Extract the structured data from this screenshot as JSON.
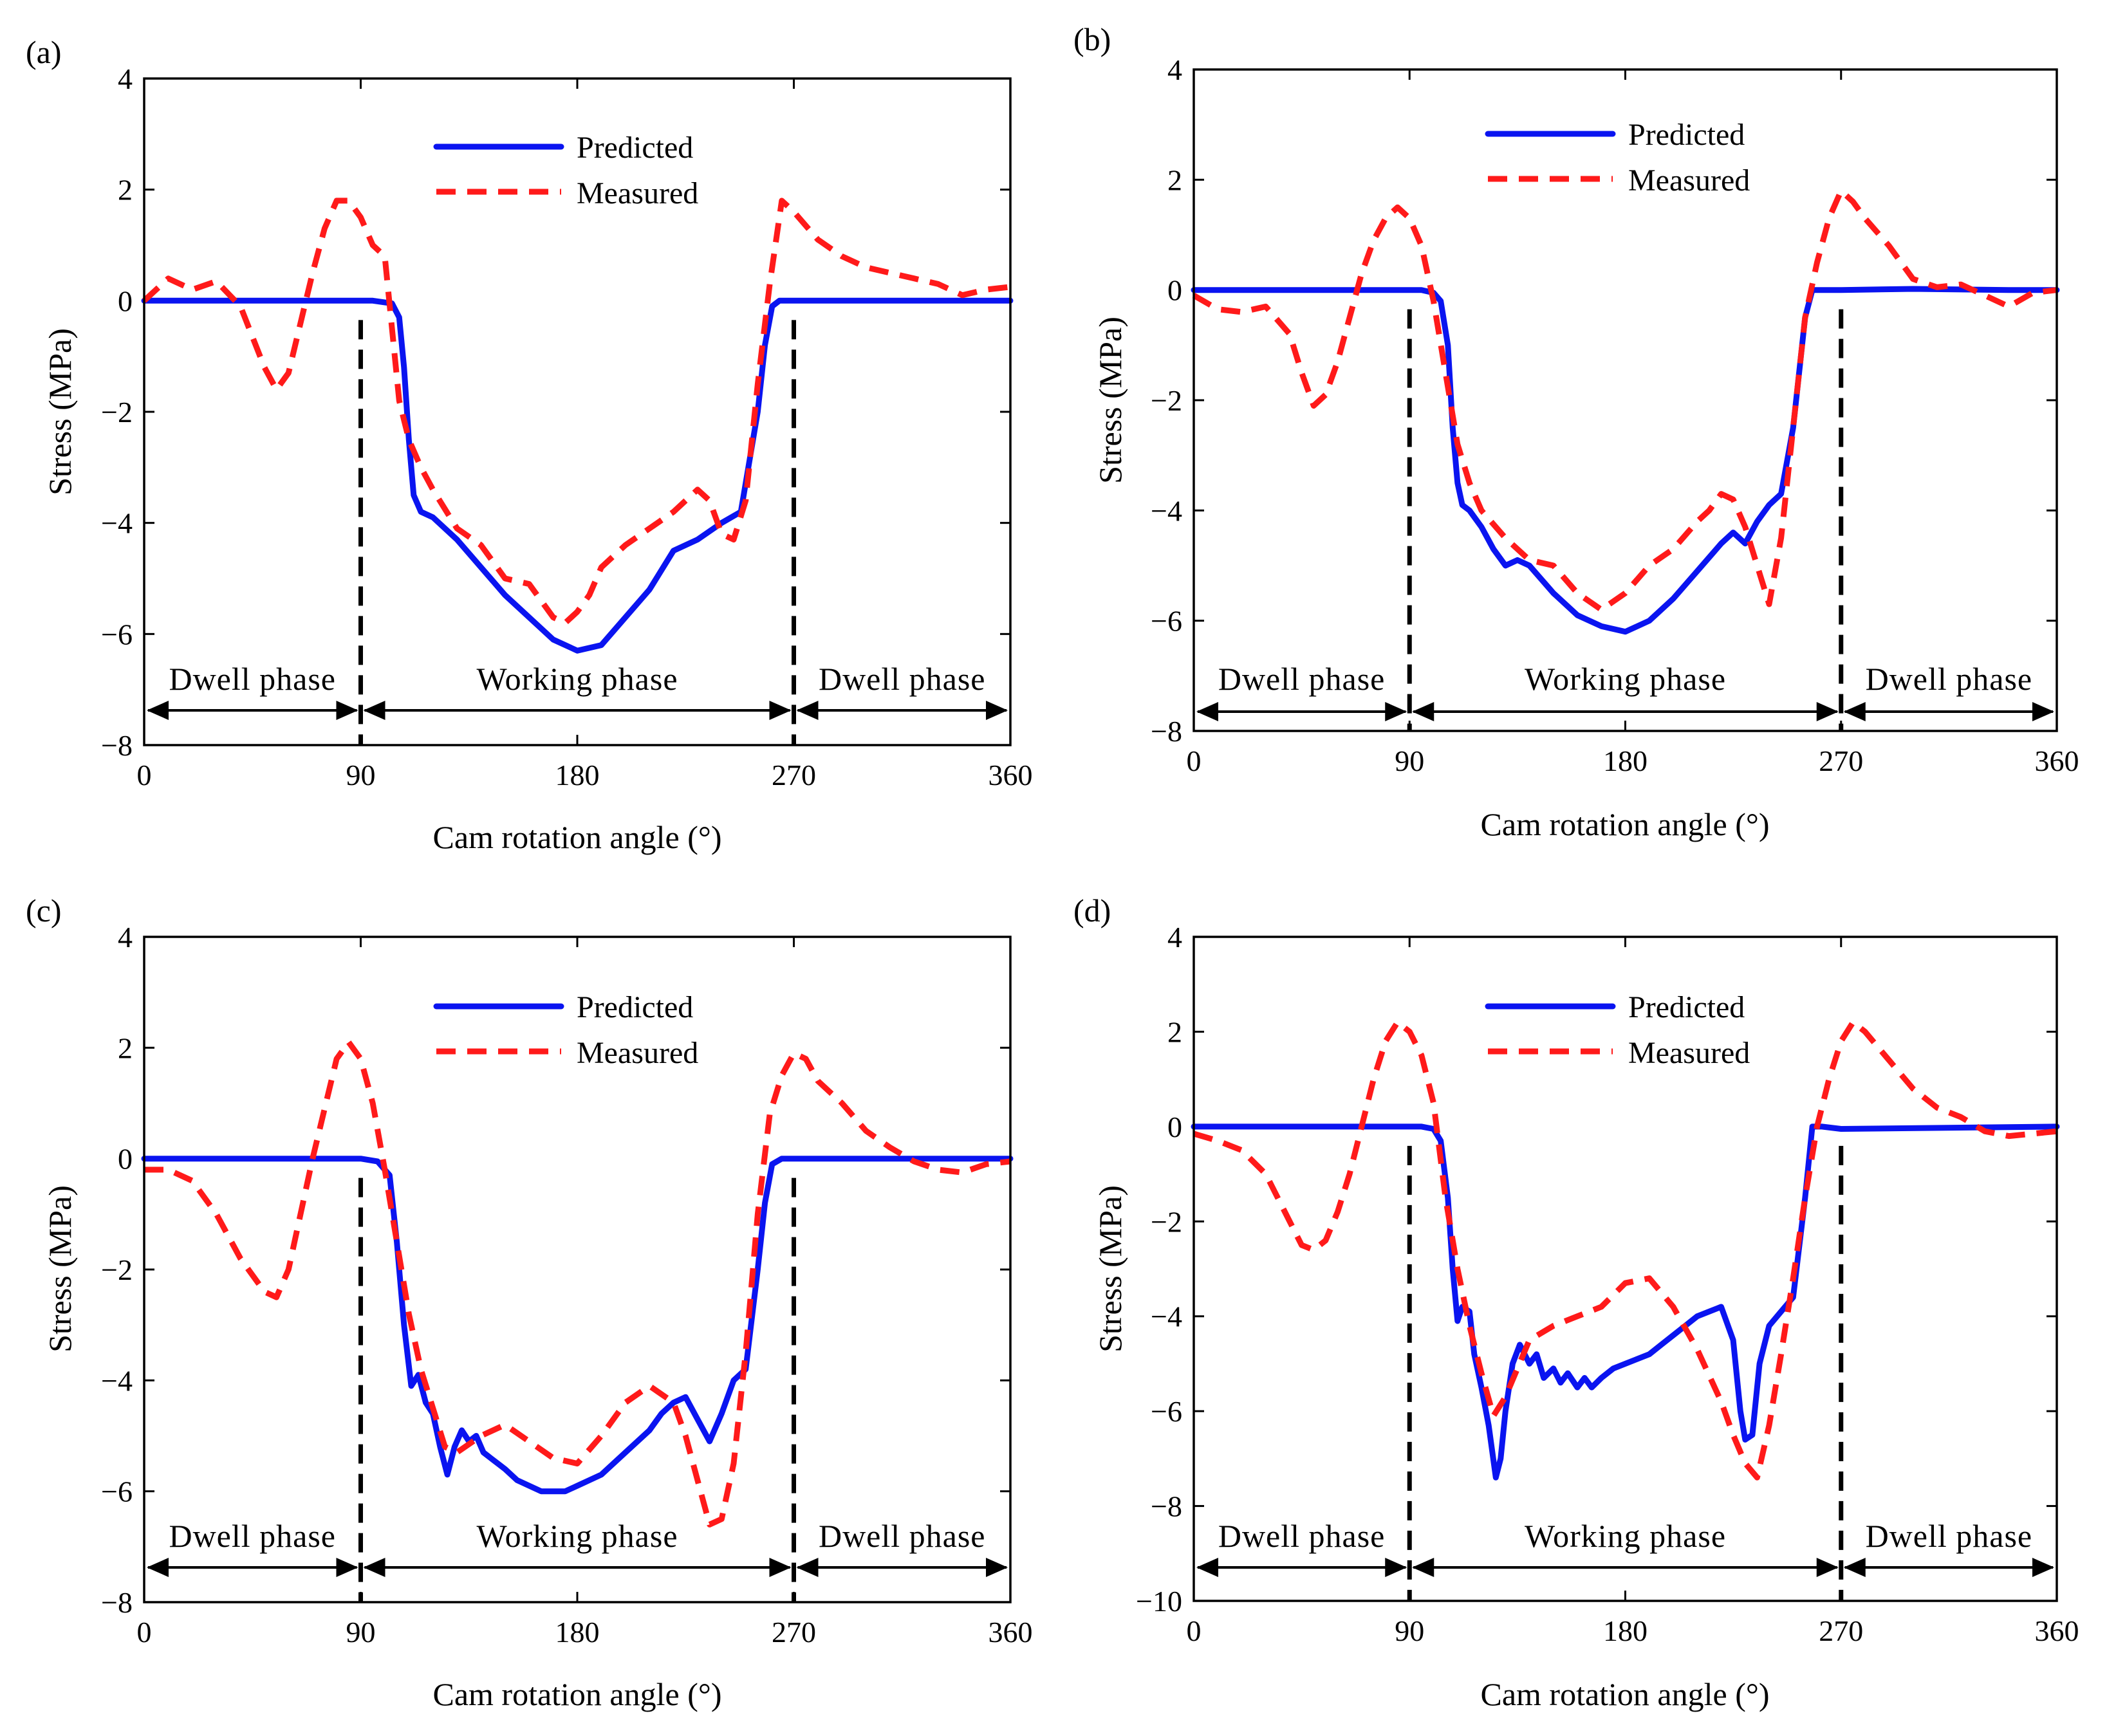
{
  "colors": {
    "predicted": "#0a14f0",
    "measured": "#ff1a1a"
  },
  "chart_data": [
    {
      "panel": "(a)",
      "type": "line",
      "xlabel": "Cam rotation angle (°)",
      "ylabel": "Stress (MPa)",
      "xlim": [
        0,
        360
      ],
      "ylim": [
        -8,
        4
      ],
      "xticks": [
        "0",
        "90",
        "180",
        "270",
        "360"
      ],
      "yticks": [
        "−8",
        "−6",
        "−4",
        "−2",
        "0",
        "2",
        "4"
      ],
      "yvals": [
        -8,
        -6,
        -4,
        -2,
        0,
        2,
        4
      ],
      "legend": [
        "Predicted",
        "Measured"
      ],
      "phases": [
        "Dwell phase",
        "Working phase",
        "Dwell phase"
      ],
      "boundaries": [
        90,
        270
      ],
      "series": [
        {
          "name": "Predicted",
          "x": [
            0,
            85,
            95,
            103,
            106,
            108,
            110,
            112,
            115,
            120,
            130,
            150,
            170,
            180,
            190,
            210,
            220,
            230,
            240,
            248,
            255,
            258,
            261,
            264,
            270,
            360
          ],
          "y": [
            0,
            0,
            0,
            -0.05,
            -0.3,
            -1.2,
            -2.5,
            -3.5,
            -3.8,
            -3.9,
            -4.3,
            -5.3,
            -6.1,
            -6.3,
            -6.2,
            -5.2,
            -4.5,
            -4.3,
            -4.0,
            -3.8,
            -2.0,
            -0.8,
            -0.1,
            0,
            0,
            0
          ]
        },
        {
          "name": "Measured",
          "x": [
            0,
            10,
            20,
            30,
            40,
            50,
            55,
            60,
            65,
            70,
            75,
            80,
            85,
            90,
            95,
            100,
            103,
            106,
            110,
            115,
            120,
            130,
            140,
            150,
            160,
            170,
            175,
            180,
            185,
            190,
            200,
            210,
            220,
            225,
            230,
            235,
            240,
            245,
            250,
            255,
            260,
            265,
            270,
            280,
            290,
            300,
            310,
            320,
            330,
            340,
            350,
            360
          ],
          "y": [
            0,
            0.4,
            0.2,
            0.35,
            -0.1,
            -1.2,
            -1.6,
            -1.3,
            -0.4,
            0.5,
            1.3,
            1.8,
            1.8,
            1.5,
            1.0,
            0.8,
            -0.5,
            -1.8,
            -2.5,
            -3.0,
            -3.4,
            -4.1,
            -4.4,
            -5.0,
            -5.1,
            -5.7,
            -5.8,
            -5.6,
            -5.3,
            -4.8,
            -4.4,
            -4.1,
            -3.8,
            -3.6,
            -3.4,
            -3.6,
            -4.2,
            -4.3,
            -3.6,
            -1.5,
            0.3,
            1.8,
            1.6,
            1.1,
            0.8,
            0.6,
            0.5,
            0.4,
            0.3,
            0.1,
            0.2,
            0.25
          ]
        }
      ]
    },
    {
      "panel": "(b)",
      "type": "line",
      "xlabel": "Cam rotation angle (°)",
      "ylabel": "Stress (MPa)",
      "xlim": [
        0,
        360
      ],
      "ylim": [
        -8,
        4
      ],
      "xticks": [
        "0",
        "90",
        "180",
        "270",
        "360"
      ],
      "yticks": [
        "−8",
        "−6",
        "−4",
        "−2",
        "0",
        "2",
        "4"
      ],
      "yvals": [
        -8,
        -6,
        -4,
        -2,
        0,
        2,
        4
      ],
      "legend": [
        "Predicted",
        "Measured"
      ],
      "phases": [
        "Dwell phase",
        "Working phase",
        "Dwell phase"
      ],
      "boundaries": [
        90,
        270
      ],
      "series": [
        {
          "name": "Predicted",
          "x": [
            0,
            95,
            100,
            103,
            106,
            108,
            110,
            112,
            115,
            120,
            125,
            130,
            135,
            140,
            150,
            160,
            170,
            180,
            190,
            200,
            210,
            220,
            225,
            230,
            235,
            240,
            245,
            250,
            255,
            258,
            262,
            270,
            300,
            340,
            360
          ],
          "y": [
            0,
            0,
            -0.05,
            -0.2,
            -1.0,
            -2.5,
            -3.5,
            -3.9,
            -4.0,
            -4.3,
            -4.7,
            -5.0,
            -4.9,
            -5.0,
            -5.5,
            -5.9,
            -6.1,
            -6.2,
            -6.0,
            -5.6,
            -5.1,
            -4.6,
            -4.4,
            -4.6,
            -4.2,
            -3.9,
            -3.7,
            -2.5,
            -0.5,
            0,
            0,
            0,
            0.02,
            0,
            0
          ]
        },
        {
          "name": "Measured",
          "x": [
            0,
            10,
            20,
            30,
            40,
            45,
            50,
            55,
            60,
            65,
            70,
            75,
            80,
            85,
            90,
            95,
            100,
            105,
            110,
            115,
            120,
            130,
            140,
            150,
            160,
            170,
            180,
            190,
            200,
            210,
            215,
            220,
            225,
            230,
            235,
            240,
            245,
            250,
            255,
            260,
            265,
            270,
            275,
            280,
            290,
            300,
            310,
            320,
            330,
            340,
            350,
            360
          ],
          "y": [
            -0.1,
            -0.35,
            -0.4,
            -0.3,
            -0.8,
            -1.5,
            -2.1,
            -1.9,
            -1.3,
            -0.5,
            0.3,
            0.9,
            1.3,
            1.5,
            1.3,
            0.8,
            -0.2,
            -1.5,
            -2.8,
            -3.5,
            -4.0,
            -4.5,
            -4.9,
            -5.0,
            -5.5,
            -5.8,
            -5.5,
            -5.0,
            -4.7,
            -4.2,
            -4.0,
            -3.7,
            -3.8,
            -4.3,
            -5.0,
            -5.7,
            -4.5,
            -2.5,
            -0.5,
            0.5,
            1.3,
            1.8,
            1.6,
            1.3,
            0.8,
            0.2,
            0.05,
            0.1,
            -0.1,
            -0.3,
            -0.05,
            0
          ]
        }
      ]
    },
    {
      "panel": "(c)",
      "type": "line",
      "xlabel": "Cam rotation angle (°)",
      "ylabel": "Stress (MPa)",
      "xlim": [
        0,
        360
      ],
      "ylim": [
        -8,
        4
      ],
      "xticks": [
        "0",
        "90",
        "180",
        "270",
        "360"
      ],
      "yticks": [
        "−8",
        "−6",
        "−4",
        "−2",
        "0",
        "2",
        "4"
      ],
      "yvals": [
        -8,
        -6,
        -4,
        -2,
        0,
        2,
        4
      ],
      "legend": [
        "Predicted",
        "Measured"
      ],
      "phases": [
        "Dwell phase",
        "Working phase",
        "Dwell phase"
      ],
      "boundaries": [
        90,
        270
      ],
      "series": [
        {
          "name": "Predicted",
          "x": [
            0,
            90,
            97,
            102,
            105,
            108,
            111,
            114,
            117,
            120,
            123,
            126,
            129,
            132,
            135,
            138,
            141,
            144,
            147,
            150,
            155,
            160,
            165,
            170,
            175,
            180,
            190,
            200,
            210,
            215,
            220,
            225,
            230,
            235,
            240,
            245,
            250,
            255,
            258,
            261,
            265,
            270,
            360
          ],
          "y": [
            0,
            0,
            -0.05,
            -0.3,
            -1.5,
            -3.0,
            -4.1,
            -3.9,
            -4.4,
            -4.6,
            -5.2,
            -5.7,
            -5.2,
            -4.9,
            -5.1,
            -5.0,
            -5.3,
            -5.4,
            -5.5,
            -5.6,
            -5.8,
            -5.9,
            -6.0,
            -6.0,
            -6.0,
            -5.9,
            -5.7,
            -5.3,
            -4.9,
            -4.6,
            -4.4,
            -4.3,
            -4.7,
            -5.1,
            -4.6,
            -4.0,
            -3.8,
            -2.0,
            -0.8,
            -0.1,
            0,
            0,
            0
          ]
        },
        {
          "name": "Measured",
          "x": [
            0,
            10,
            20,
            30,
            40,
            50,
            55,
            60,
            65,
            70,
            75,
            80,
            85,
            90,
            95,
            100,
            105,
            110,
            115,
            120,
            125,
            130,
            140,
            150,
            160,
            170,
            180,
            190,
            200,
            210,
            220,
            225,
            230,
            235,
            240,
            245,
            250,
            255,
            260,
            265,
            270,
            275,
            280,
            290,
            300,
            310,
            320,
            330,
            340,
            350,
            360
          ],
          "y": [
            -0.2,
            -0.2,
            -0.4,
            -1.0,
            -1.8,
            -2.4,
            -2.5,
            -2.0,
            -1.0,
            0,
            0.9,
            1.8,
            2.1,
            1.8,
            1.0,
            -0.2,
            -1.5,
            -2.8,
            -3.8,
            -4.5,
            -5.2,
            -5.3,
            -5.0,
            -4.8,
            -5.1,
            -5.4,
            -5.5,
            -5.0,
            -4.4,
            -4.1,
            -4.4,
            -5.0,
            -5.8,
            -6.6,
            -6.5,
            -5.5,
            -3.5,
            -1.0,
            0.8,
            1.5,
            1.9,
            1.8,
            1.4,
            1.0,
            0.5,
            0.2,
            -0.05,
            -0.2,
            -0.25,
            -0.1,
            -0.05
          ]
        }
      ]
    },
    {
      "panel": "(d)",
      "type": "line",
      "xlabel": "Cam rotation angle (°)",
      "ylabel": "Stress (MPa)",
      "xlim": [
        0,
        360
      ],
      "ylim": [
        -10,
        4
      ],
      "xticks": [
        "0",
        "90",
        "180",
        "270",
        "360"
      ],
      "yticks": [
        "−10",
        "−8",
        "−6",
        "−4",
        "−2",
        "0",
        "2",
        "4"
      ],
      "yvals": [
        -10,
        -8,
        -6,
        -4,
        -2,
        0,
        2,
        4
      ],
      "legend": [
        "Predicted",
        "Measured"
      ],
      "phases": [
        "Dwell phase",
        "Working phase",
        "Dwell phase"
      ],
      "boundaries": [
        90,
        270
      ],
      "series": [
        {
          "name": "Predicted",
          "x": [
            0,
            95,
            100,
            103,
            106,
            108,
            110,
            112,
            115,
            117,
            120,
            123,
            126,
            128,
            130,
            133,
            136,
            140,
            143,
            146,
            150,
            153,
            156,
            160,
            163,
            166,
            170,
            175,
            180,
            185,
            190,
            195,
            200,
            205,
            210,
            215,
            220,
            225,
            228,
            230,
            233,
            236,
            240,
            245,
            250,
            255,
            258,
            262,
            270,
            360
          ],
          "y": [
            0,
            0,
            -0.05,
            -0.3,
            -1.5,
            -3.0,
            -4.1,
            -3.8,
            -3.9,
            -4.8,
            -5.5,
            -6.3,
            -7.4,
            -7.0,
            -6.0,
            -5.0,
            -4.6,
            -5.0,
            -4.8,
            -5.3,
            -5.1,
            -5.4,
            -5.2,
            -5.5,
            -5.3,
            -5.5,
            -5.3,
            -5.1,
            -5.0,
            -4.9,
            -4.8,
            -4.6,
            -4.4,
            -4.2,
            -4.0,
            -3.9,
            -3.8,
            -4.5,
            -6.0,
            -6.6,
            -6.5,
            -5.0,
            -4.2,
            -3.9,
            -3.6,
            -1.5,
            0,
            0,
            -0.05,
            0
          ]
        },
        {
          "name": "Measured",
          "x": [
            0,
            10,
            20,
            30,
            40,
            45,
            50,
            55,
            60,
            65,
            70,
            75,
            80,
            85,
            90,
            95,
            100,
            105,
            110,
            115,
            120,
            125,
            130,
            140,
            150,
            160,
            170,
            180,
            190,
            200,
            210,
            220,
            225,
            230,
            235,
            240,
            245,
            250,
            255,
            260,
            265,
            270,
            275,
            280,
            290,
            300,
            310,
            320,
            330,
            340,
            350,
            360
          ],
          "y": [
            -0.15,
            -0.3,
            -0.5,
            -1.0,
            -2.0,
            -2.5,
            -2.6,
            -2.4,
            -1.8,
            -1.0,
            0,
            1.0,
            1.8,
            2.2,
            2.0,
            1.5,
            0.5,
            -1.5,
            -3.0,
            -4.2,
            -5.2,
            -6.1,
            -5.7,
            -4.5,
            -4.2,
            -4.0,
            -3.8,
            -3.3,
            -3.2,
            -3.8,
            -4.7,
            -5.8,
            -6.5,
            -7.1,
            -7.4,
            -6.3,
            -4.8,
            -3.2,
            -1.5,
            0,
            1.0,
            1.8,
            2.2,
            2.0,
            1.4,
            0.8,
            0.4,
            0.2,
            -0.1,
            -0.2,
            -0.15,
            -0.1
          ]
        }
      ]
    }
  ]
}
